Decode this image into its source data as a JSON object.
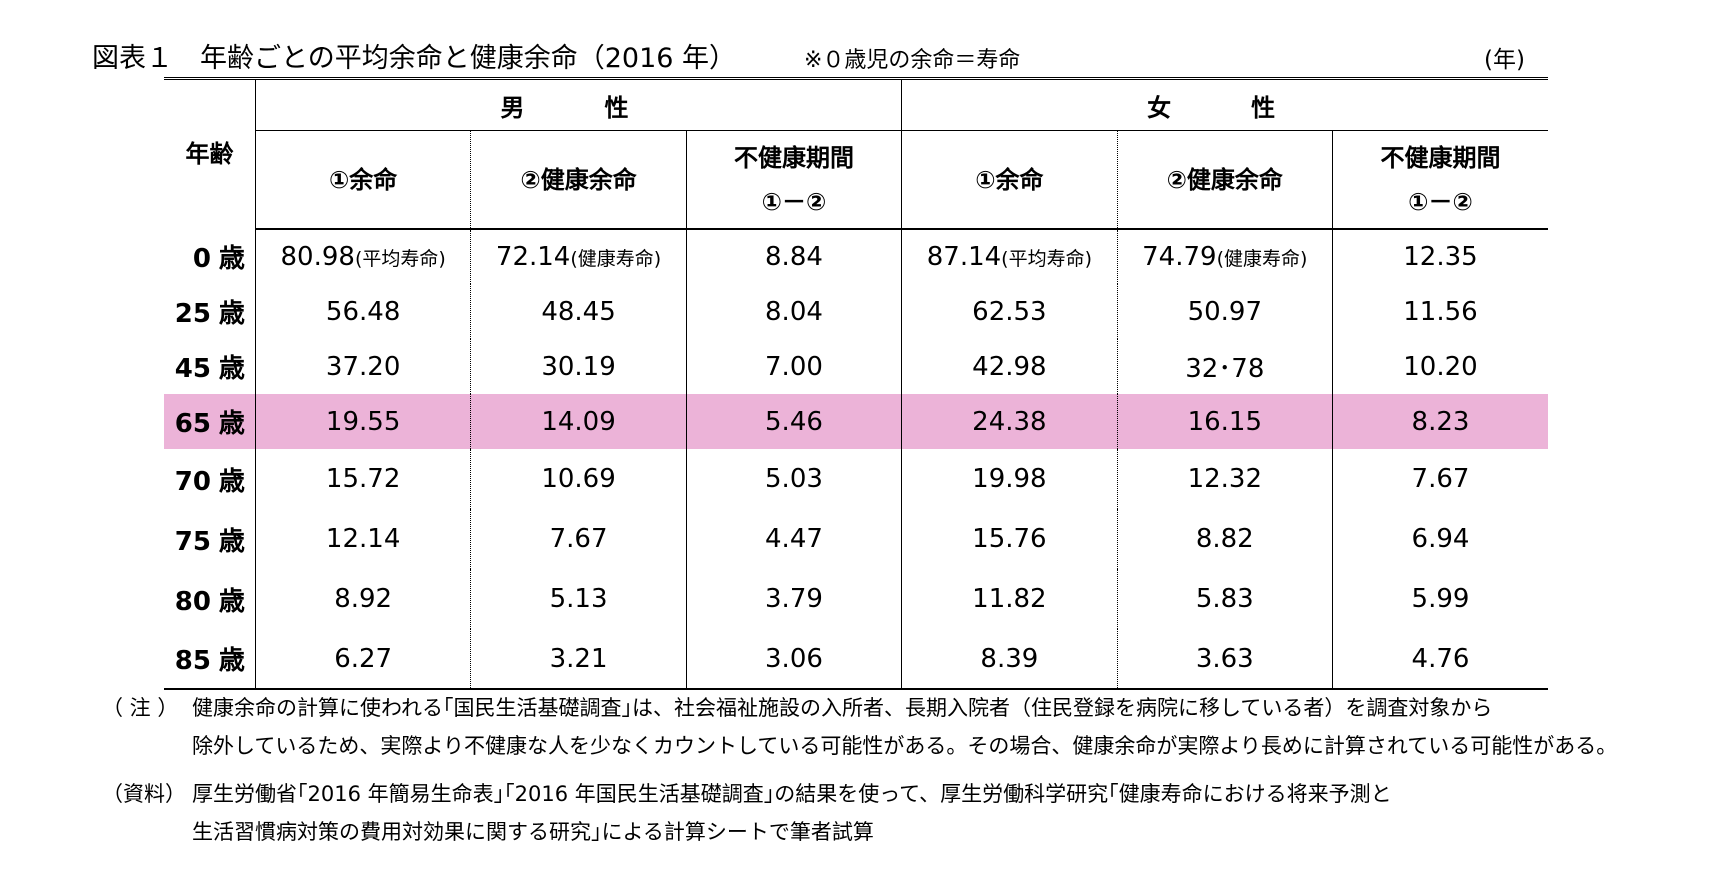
{
  "title": "図表１　年齢ごとの平均余命と健康余命（2016 年）",
  "title_note": "※０歳児の余命＝寿命",
  "unit": "(年)",
  "header": {
    "age": "年齢",
    "male": "男　性",
    "female": "女　性",
    "col_remaining": "①余命",
    "col_healthy": "②健康余命",
    "col_unhealthy_1": "不健康期間",
    "col_unhealthy_2": "①－②"
  },
  "rows": [
    {
      "age": "0",
      "age_suffix": "歳",
      "m1": "80.98",
      "m1_tag": "(平均寿命)",
      "m2": "72.14",
      "m2_tag": "(健康寿命)",
      "m3": "8.84",
      "f1": "87.14",
      "f1_tag": "(平均寿命)",
      "f2": "74.79",
      "f2_tag": "(健康寿命)",
      "f3": "12.35"
    },
    {
      "age": "25",
      "age_suffix": "歳",
      "m1": "56.48",
      "m2": "48.45",
      "m3": "8.04",
      "f1": "62.53",
      "f2": "50.97",
      "f3": "11.56"
    },
    {
      "age": "45",
      "age_suffix": "歳",
      "m1": "37.20",
      "m2": "30.19",
      "m3": "7.00",
      "f1": "42.98",
      "f2": "32･78",
      "f3": "10.20"
    },
    {
      "age": "65",
      "age_suffix": "歳",
      "m1": "19.55",
      "m2": "14.09",
      "m3": "5.46",
      "f1": "24.38",
      "f2": "16.15",
      "f3": "8.23"
    },
    {
      "age": "70",
      "age_suffix": "歳",
      "m1": "15.72",
      "m2": "10.69",
      "m3": "5.03",
      "f1": "19.98",
      "f2": "12.32",
      "f3": "7.67"
    },
    {
      "age": "75",
      "age_suffix": "歳",
      "m1": "12.14",
      "m2": "7.67",
      "m3": "4.47",
      "f1": "15.76",
      "f2": "8.82",
      "f3": "6.94"
    },
    {
      "age": "80",
      "age_suffix": "歳",
      "m1": "8.92",
      "m2": "5.13",
      "m3": "3.79",
      "f1": "11.82",
      "f2": "5.83",
      "f3": "5.99"
    },
    {
      "age": "85",
      "age_suffix": "歳",
      "m1": "6.27",
      "m2": "3.21",
      "m3": "3.06",
      "f1": "8.39",
      "f2": "3.63",
      "f3": "4.76"
    }
  ],
  "highlight_color": "#ecb3d8",
  "notes": {
    "note_mark": "（ 注 ）",
    "note_line1": "健康余命の計算に使われる｢国民生活基礎調査｣は、社会福祉施設の入所者、長期入院者（住民登録を病院に移している者）を調査対象から",
    "note_line2": "除外しているため、実際より不健康な人を少なくカウントしている可能性がある。その場合、健康余命が実際より長めに計算されている可能性がある。",
    "source_mark": "（資料）",
    "source_line1": "厚生労働省｢2016 年簡易生命表｣｢2016 年国民生活基礎調査｣の結果を使って、厚生労働科学研究｢健康寿命における将来予測と",
    "source_line2": "生活習慣病対策の費用対効果に関する研究｣による計算シートで筆者試算"
  }
}
